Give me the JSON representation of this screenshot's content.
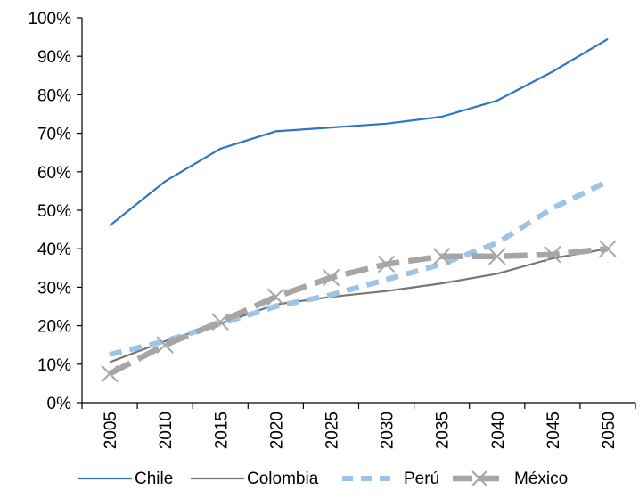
{
  "chart_data": {
    "type": "line",
    "title": "",
    "xlabel": "",
    "ylabel": "",
    "x": [
      2005,
      2010,
      2015,
      2020,
      2025,
      2030,
      2035,
      2040,
      2045,
      2050
    ],
    "x_tick_labels": [
      "2005",
      "2010",
      "2015",
      "2020",
      "2025",
      "2030",
      "2035",
      "2040",
      "2045",
      "2050"
    ],
    "y_tick_labels": [
      "0%",
      "10%",
      "20%",
      "30%",
      "40%",
      "50%",
      "60%",
      "70%",
      "80%",
      "90%",
      "100%"
    ],
    "ylim": [
      0,
      100
    ],
    "y_unit": "%",
    "grid": false,
    "legend_position": "bottom",
    "series": [
      {
        "name": "Chile",
        "color": "#2E75C9",
        "style": "solid-thin",
        "values": [
          46,
          57.5,
          66,
          70.5,
          71.5,
          72.5,
          74.3,
          78.5,
          86,
          94.5
        ]
      },
      {
        "name": "Colombia",
        "color": "#767676",
        "style": "solid-thin",
        "values": [
          10.5,
          16,
          20.5,
          25.5,
          27.5,
          29,
          31,
          33.5,
          37.5,
          40
        ]
      },
      {
        "name": "Perú",
        "color": "#9DC3E6",
        "style": "dashed-thick",
        "values": [
          12.5,
          16,
          20.5,
          25,
          28,
          32,
          36,
          41.5,
          50.5,
          57.5
        ]
      },
      {
        "name": "México",
        "color": "#A6A6A6",
        "style": "dashed-thick-with-x-markers",
        "values": [
          7.5,
          15,
          21,
          27.5,
          32.5,
          36,
          38,
          38,
          38.5,
          40
        ]
      }
    ]
  }
}
